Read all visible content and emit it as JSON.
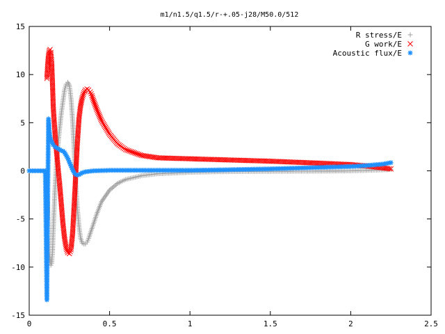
{
  "chart_data": {
    "type": "scatter",
    "title": "m1/n1.5/q1.5/r-+.05-j28/M50.0/512",
    "xlabel": "",
    "ylabel": "",
    "xlim": [
      0,
      2.5
    ],
    "ylim": [
      -15,
      15
    ],
    "xticks": [
      "0",
      "0.5",
      "1",
      "1.5",
      "2",
      "2.5"
    ],
    "yticks": [
      "15",
      "10",
      "5",
      "0",
      "-5",
      "-10",
      "-15"
    ],
    "grid": false,
    "legend_position": "top-right",
    "series": [
      {
        "name": "R stress/E",
        "marker": "plus",
        "color": "#a0a0a0",
        "x": [
          0.11,
          0.115,
          0.12,
          0.125,
          0.13,
          0.135,
          0.14,
          0.145,
          0.15,
          0.16,
          0.17,
          0.18,
          0.19,
          0.2,
          0.21,
          0.22,
          0.23,
          0.24,
          0.25,
          0.26,
          0.27,
          0.28,
          0.29,
          0.3,
          0.31,
          0.32,
          0.33,
          0.34,
          0.35,
          0.36,
          0.37,
          0.38,
          0.4,
          0.42,
          0.45,
          0.5,
          0.55,
          0.6,
          0.7,
          0.8,
          1.0,
          1.2,
          1.5,
          1.8,
          2.0,
          2.1,
          2.2,
          2.25
        ],
        "y": [
          -1.2,
          -3.5,
          -6.5,
          -8.5,
          -9.5,
          -9.8,
          -9.6,
          -8.5,
          -6.0,
          -2.0,
          0.8,
          2.8,
          4.5,
          6.0,
          7.2,
          8.4,
          9.0,
          9.2,
          8.9,
          7.5,
          5.2,
          2.0,
          -1.5,
          -4.0,
          -5.8,
          -7.0,
          -7.5,
          -7.6,
          -7.6,
          -7.4,
          -7.0,
          -6.5,
          -5.5,
          -4.5,
          -3.2,
          -2.0,
          -1.3,
          -0.9,
          -0.5,
          -0.3,
          -0.15,
          -0.08,
          -0.05,
          -0.03,
          0.0,
          0.05,
          0.1,
          0.15
        ]
      },
      {
        "name": "G work/E",
        "marker": "cross",
        "color": "#ff0000",
        "x": [
          0.11,
          0.115,
          0.12,
          0.125,
          0.13,
          0.135,
          0.14,
          0.145,
          0.15,
          0.16,
          0.17,
          0.18,
          0.19,
          0.2,
          0.21,
          0.22,
          0.23,
          0.24,
          0.25,
          0.26,
          0.27,
          0.28,
          0.29,
          0.3,
          0.31,
          0.32,
          0.33,
          0.34,
          0.35,
          0.36,
          0.37,
          0.38,
          0.39,
          0.4,
          0.42,
          0.45,
          0.5,
          0.55,
          0.6,
          0.7,
          0.8,
          1.0,
          1.2,
          1.5,
          1.8,
          2.0,
          2.1,
          2.2,
          2.25
        ],
        "y": [
          9.6,
          11.0,
          12.0,
          12.5,
          12.6,
          12.3,
          11.2,
          9.0,
          6.5,
          4.0,
          2.0,
          0.2,
          -1.5,
          -3.5,
          -5.5,
          -7.0,
          -8.0,
          -8.5,
          -8.6,
          -8.2,
          -6.5,
          -3.5,
          -0.2,
          3.0,
          5.5,
          6.8,
          7.6,
          8.1,
          8.4,
          8.5,
          8.4,
          8.2,
          7.8,
          7.3,
          6.4,
          5.2,
          3.8,
          2.8,
          2.2,
          1.6,
          1.35,
          1.25,
          1.15,
          1.0,
          0.8,
          0.65,
          0.5,
          0.3,
          0.2
        ]
      },
      {
        "name": "Acoustic flux/E",
        "marker": "star",
        "color": "#1e90ff",
        "x": [
          0.0,
          0.02,
          0.04,
          0.06,
          0.08,
          0.1,
          0.11,
          0.115,
          0.12,
          0.125,
          0.13,
          0.14,
          0.15,
          0.16,
          0.17,
          0.18,
          0.19,
          0.2,
          0.21,
          0.22,
          0.23,
          0.24,
          0.25,
          0.26,
          0.27,
          0.28,
          0.29,
          0.3,
          0.31,
          0.32,
          0.33,
          0.35,
          0.4,
          0.5,
          0.6,
          0.8,
          1.0,
          1.2,
          1.5,
          1.8,
          2.0,
          2.1,
          2.2,
          2.25
        ],
        "y": [
          0.0,
          0.0,
          0.0,
          0.0,
          0.0,
          0.0,
          -13.4,
          -3.6,
          5.4,
          4.2,
          3.5,
          3.0,
          2.7,
          2.5,
          2.4,
          2.3,
          2.2,
          2.1,
          2.05,
          1.9,
          1.6,
          1.3,
          0.9,
          0.5,
          0.1,
          -0.2,
          -0.4,
          -0.45,
          -0.4,
          -0.3,
          -0.2,
          -0.1,
          0.0,
          0.05,
          0.05,
          0.05,
          0.05,
          0.1,
          0.2,
          0.35,
          0.45,
          0.55,
          0.7,
          0.85
        ]
      }
    ]
  }
}
